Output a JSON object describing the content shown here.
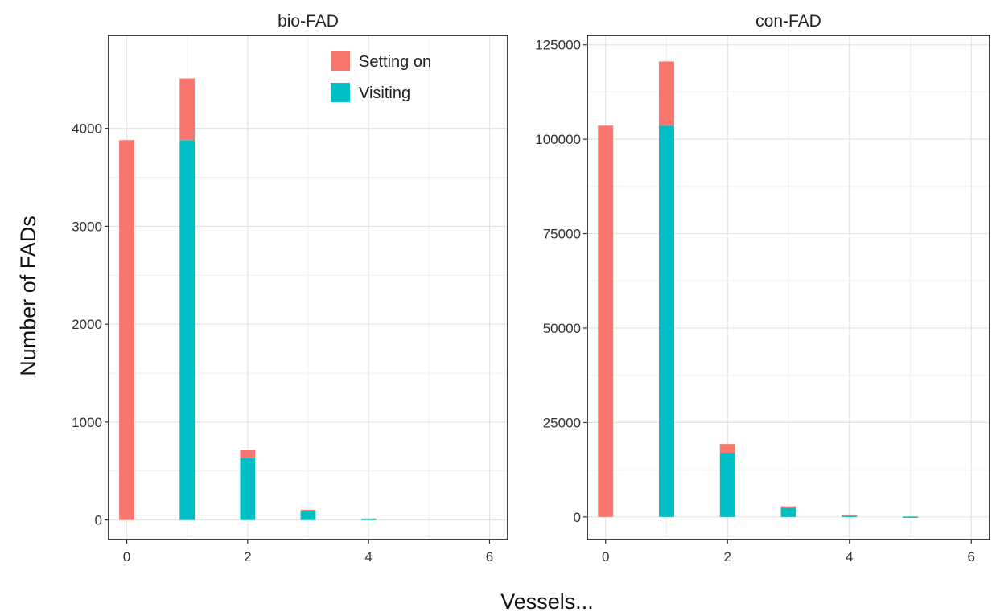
{
  "chart_data": {
    "type": "bar",
    "stacked": true,
    "xlabel": "Vessels...",
    "ylabel": "Number of FADs",
    "colors": {
      "Setting on": "#F8766D",
      "Visiting": "#00BFC4"
    },
    "legend": {
      "placement": "top-right of first panel",
      "entries": [
        "Setting on",
        "Visiting"
      ]
    },
    "panels": [
      {
        "title": "bio-FAD",
        "xlim": [
          -0.3,
          6.3
        ],
        "ylim": [
          -200,
          4950
        ],
        "x_ticks": [
          0,
          2,
          4,
          6
        ],
        "y_ticks": [
          0,
          1000,
          2000,
          3000,
          4000
        ],
        "x": [
          0,
          1,
          2,
          3,
          4,
          5
        ],
        "series": [
          {
            "name": "Visiting",
            "values": [
              0,
              3880,
              630,
              90,
              15,
              0
            ]
          },
          {
            "name": "Setting on",
            "values": [
              3880,
              630,
              90,
              15,
              0,
              0
            ]
          }
        ]
      },
      {
        "title": "con-FAD",
        "xlim": [
          -0.3,
          6.3
        ],
        "ylim": [
          -6000,
          127500
        ],
        "x_ticks": [
          0,
          2,
          4,
          6
        ],
        "y_ticks": [
          0,
          25000,
          50000,
          75000,
          100000,
          125000
        ],
        "x": [
          0,
          1,
          2,
          3,
          4,
          5
        ],
        "series": [
          {
            "name": "Visiting",
            "values": [
              0,
              103600,
              17000,
              2300,
              500,
              80
            ]
          },
          {
            "name": "Setting on",
            "values": [
              103600,
              17000,
              2300,
              500,
              80,
              0
            ]
          }
        ]
      }
    ]
  }
}
